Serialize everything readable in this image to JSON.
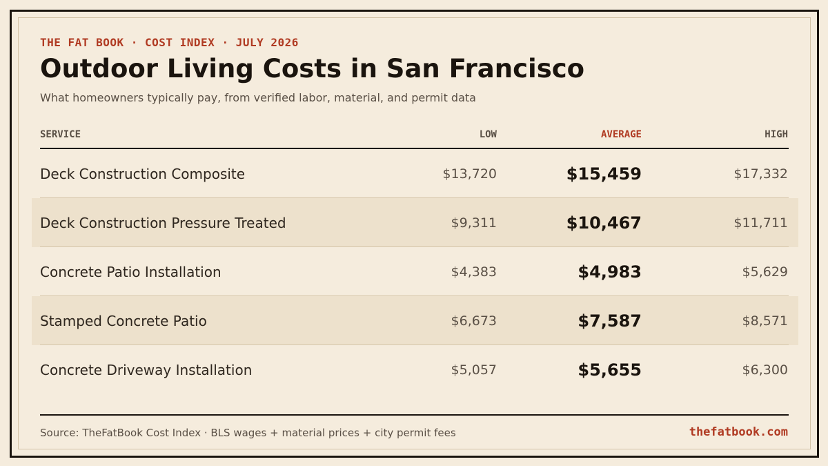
{
  "header": {
    "eyebrow": "THE FAT BOOK · COST INDEX · JULY 2026",
    "title": "Outdoor Living Costs in San Francisco",
    "subtitle": "What homeowners typically pay, from verified labor, material, and permit data"
  },
  "table": {
    "columns": {
      "service": "SERVICE",
      "low": "LOW",
      "average": "AVERAGE",
      "high": "HIGH"
    },
    "rows": [
      {
        "service": "Deck Construction Composite",
        "low": "$13,720",
        "average": "$15,459",
        "high": "$17,332"
      },
      {
        "service": "Deck Construction Pressure Treated",
        "low": "$9,311",
        "average": "$10,467",
        "high": "$11,711"
      },
      {
        "service": "Concrete Patio Installation",
        "low": "$4,383",
        "average": "$4,983",
        "high": "$5,629"
      },
      {
        "service": "Stamped Concrete Patio",
        "low": "$6,673",
        "average": "$7,587",
        "high": "$8,571"
      },
      {
        "service": "Concrete Driveway Installation",
        "low": "$5,057",
        "average": "$5,655",
        "high": "$6,300"
      }
    ]
  },
  "footer": {
    "source": "Source: TheFatBook Cost Index · BLS wages + material prices + city permit fees",
    "site": "thefatbook.com"
  },
  "colors": {
    "background": "#f5ecdd",
    "accent": "#b03a22",
    "ink": "#1a140e",
    "row_shade": "#ede1cc"
  }
}
